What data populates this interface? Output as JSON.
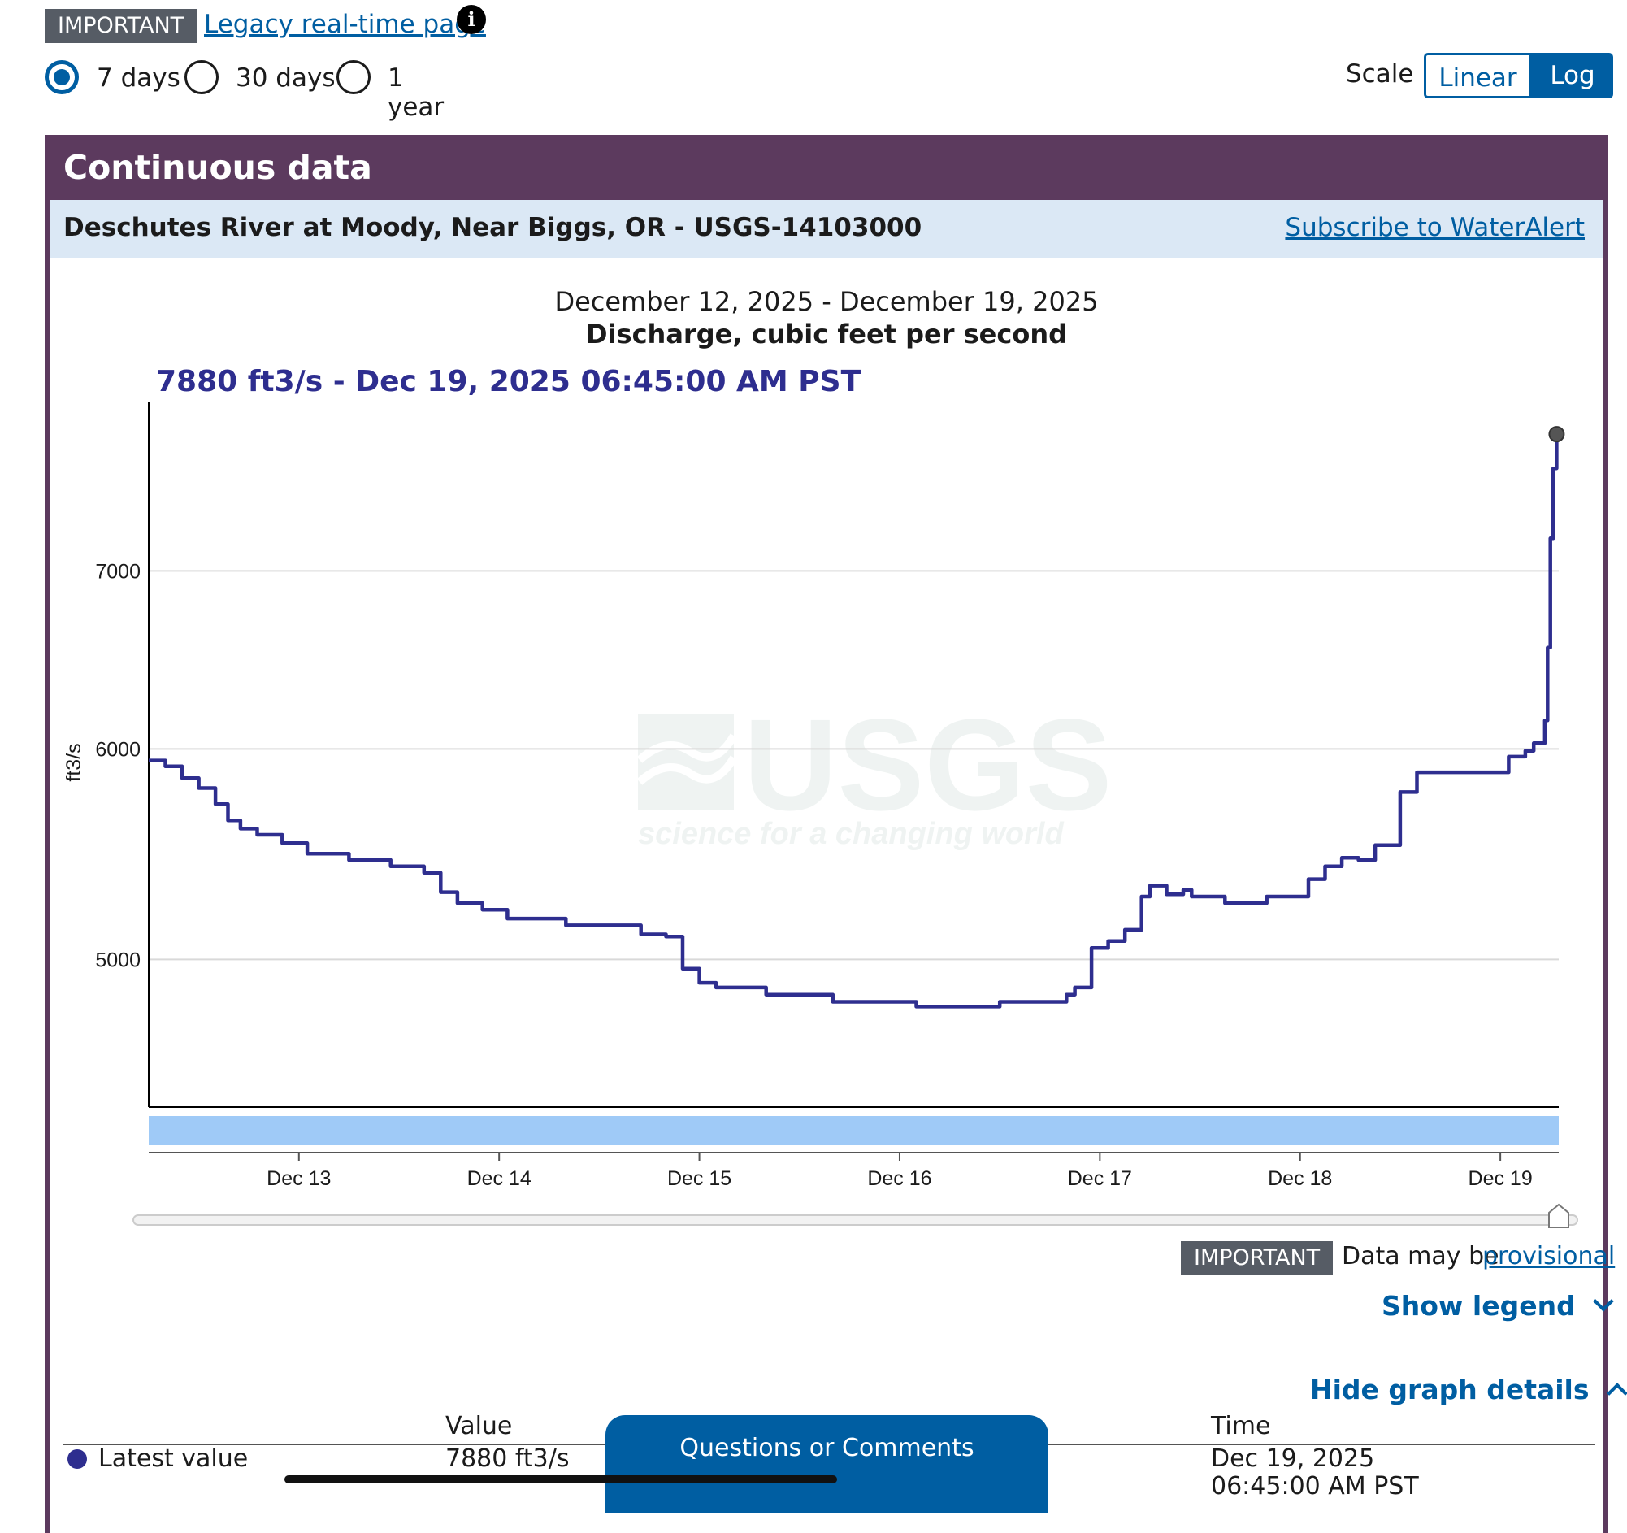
{
  "top": {
    "important_tag": "IMPORTANT",
    "legacy_link": "Legacy real-time page",
    "info_icon": "info-icon"
  },
  "period": {
    "options": [
      {
        "label": "7 days",
        "selected": true
      },
      {
        "label": "30 days",
        "selected": false
      },
      {
        "label": "1 year",
        "selected": false
      }
    ]
  },
  "scale": {
    "label": "Scale",
    "options": [
      {
        "label": "Linear",
        "selected": false
      },
      {
        "label": "Log",
        "selected": true
      }
    ]
  },
  "card": {
    "title": "Continuous data",
    "site_name": "Deschutes River at Moody, Near Biggs, OR - USGS-14103000",
    "subscribe_link": "Subscribe to WaterAlert"
  },
  "chart_data": {
    "type": "line",
    "date_range": "December 12, 2025 - December 19, 2025",
    "title": "Discharge, cubic feet per second",
    "current_value_label": "7880 ft3/s - Dec 19, 2025 06:45:00 AM PST",
    "ylabel": "ft3/s",
    "yscale": "log",
    "ylim": [
      4400,
      8100
    ],
    "yticks": [
      5000,
      6000,
      7000
    ],
    "xticks": [
      "Dec 13",
      "Dec 14",
      "Dec 15",
      "Dec 16",
      "Dec 17",
      "Dec 18",
      "Dec 19"
    ],
    "xlim": [
      "2025-12-12 06:00",
      "2025-12-19 07:00"
    ],
    "grid": true,
    "series": [
      {
        "color": "#2e2e8f",
        "points": [
          [
            "2025-12-12 06:00",
            5940
          ],
          [
            "2025-12-12 07:00",
            5940
          ],
          [
            "2025-12-12 08:00",
            5910
          ],
          [
            "2025-12-12 10:00",
            5850
          ],
          [
            "2025-12-12 12:00",
            5800
          ],
          [
            "2025-12-12 14:00",
            5720
          ],
          [
            "2025-12-12 15:30",
            5640
          ],
          [
            "2025-12-12 17:00",
            5600
          ],
          [
            "2025-12-12 19:00",
            5570
          ],
          [
            "2025-12-12 22:00",
            5530
          ],
          [
            "2025-12-13 01:00",
            5480
          ],
          [
            "2025-12-13 06:00",
            5450
          ],
          [
            "2025-12-13 11:00",
            5420
          ],
          [
            "2025-12-13 15:00",
            5390
          ],
          [
            "2025-12-13 17:00",
            5300
          ],
          [
            "2025-12-13 19:00",
            5250
          ],
          [
            "2025-12-13 22:00",
            5220
          ],
          [
            "2025-12-14 01:00",
            5180
          ],
          [
            "2025-12-14 06:00",
            5180
          ],
          [
            "2025-12-14 08:00",
            5150
          ],
          [
            "2025-12-14 14:00",
            5150
          ],
          [
            "2025-12-14 17:00",
            5110
          ],
          [
            "2025-12-14 20:00",
            5100
          ],
          [
            "2025-12-14 22:00",
            4960
          ],
          [
            "2025-12-15 00:00",
            4900
          ],
          [
            "2025-12-15 02:00",
            4880
          ],
          [
            "2025-12-15 06:00",
            4880
          ],
          [
            "2025-12-15 08:00",
            4850
          ],
          [
            "2025-12-15 14:00",
            4850
          ],
          [
            "2025-12-15 16:00",
            4820
          ],
          [
            "2025-12-16 00:00",
            4820
          ],
          [
            "2025-12-16 02:00",
            4800
          ],
          [
            "2025-12-16 10:00",
            4800
          ],
          [
            "2025-12-16 12:00",
            4820
          ],
          [
            "2025-12-16 18:00",
            4820
          ],
          [
            "2025-12-16 20:00",
            4850
          ],
          [
            "2025-12-16 21:00",
            4880
          ],
          [
            "2025-12-16 23:00",
            5050
          ],
          [
            "2025-12-17 01:00",
            5080
          ],
          [
            "2025-12-17 03:00",
            5130
          ],
          [
            "2025-12-17 05:00",
            5280
          ],
          [
            "2025-12-17 06:00",
            5330
          ],
          [
            "2025-12-17 08:00",
            5290
          ],
          [
            "2025-12-17 10:00",
            5310
          ],
          [
            "2025-12-17 11:00",
            5280
          ],
          [
            "2025-12-17 14:00",
            5280
          ],
          [
            "2025-12-17 15:00",
            5250
          ],
          [
            "2025-12-17 19:00",
            5250
          ],
          [
            "2025-12-17 20:00",
            5280
          ],
          [
            "2025-12-17 23:00",
            5280
          ],
          [
            "2025-12-18 01:00",
            5360
          ],
          [
            "2025-12-18 03:00",
            5420
          ],
          [
            "2025-12-18 05:00",
            5460
          ],
          [
            "2025-12-18 07:00",
            5450
          ],
          [
            "2025-12-18 09:00",
            5520
          ],
          [
            "2025-12-18 12:00",
            5780
          ],
          [
            "2025-12-18 14:00",
            5880
          ],
          [
            "2025-12-18 16:00",
            5880
          ],
          [
            "2025-12-18 23:00",
            5880
          ],
          [
            "2025-12-19 01:00",
            5960
          ],
          [
            "2025-12-19 03:00",
            5990
          ],
          [
            "2025-12-19 04:00",
            6030
          ],
          [
            "2025-12-19 05:00",
            6030
          ],
          [
            "2025-12-19 05:20",
            6150
          ],
          [
            "2025-12-19 05:40",
            6550
          ],
          [
            "2025-12-19 06:00",
            7200
          ],
          [
            "2025-12-19 06:20",
            7650
          ],
          [
            "2025-12-19 06:45",
            7880
          ]
        ]
      }
    ]
  },
  "notice": {
    "tag": "IMPORTANT",
    "text": "Data may be",
    "link": "provisional"
  },
  "actions": {
    "show_legend": "Show legend",
    "hide_details": "Hide graph details"
  },
  "details_table": {
    "value_header": "Value",
    "time_header": "Time",
    "row_label": "Latest value",
    "row_value": "7880 ft3/s",
    "row_date": "Dec 19, 2025",
    "row_time": "06:45:00 AM PST"
  },
  "feedback_button": "Questions or Comments",
  "watermark": {
    "logo": "USGS",
    "tagline": "science for a changing world"
  }
}
